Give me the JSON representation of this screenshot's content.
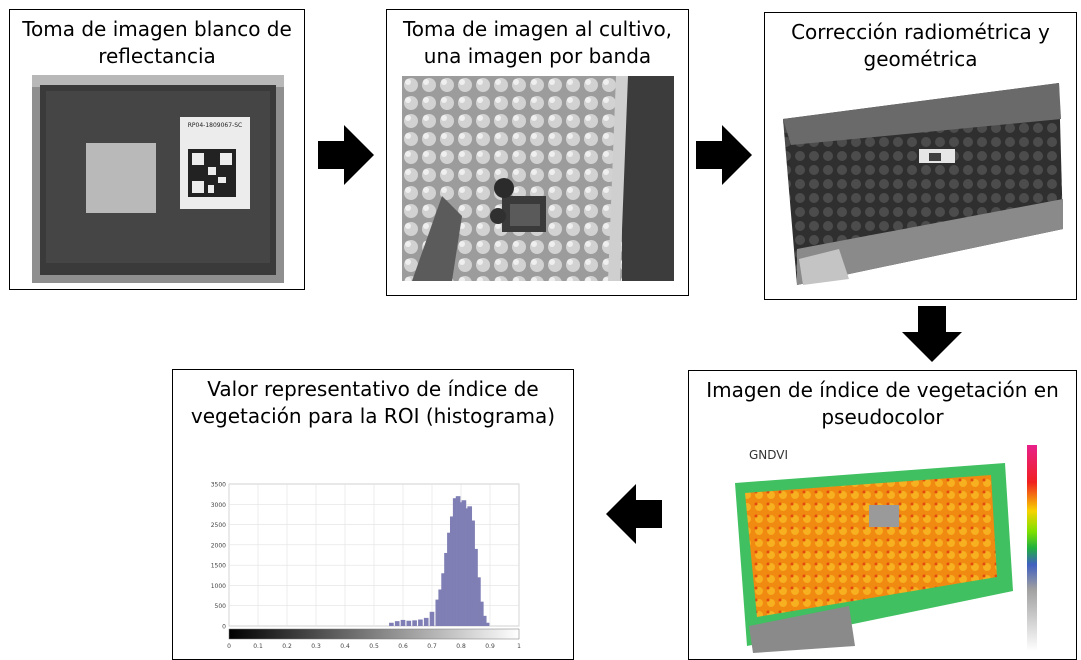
{
  "steps": [
    {
      "title_line1": "Toma de imagen blanco de",
      "title_line2": "reflectancia"
    },
    {
      "title_line1": "Toma de imagen al cultivo,",
      "title_line2": "una imagen por banda"
    },
    {
      "title_line1": "Corrección radiométrica y",
      "title_line2": "geométrica"
    },
    {
      "title_line1": "Imagen de índice de vegetación en",
      "title_line2": "pseudocolor"
    },
    {
      "title_line1": "Valor representativo de índice de",
      "title_line2": "vegetación para la ROI (histograma)"
    }
  ],
  "panel_label_text": "RP04-1809067-SC",
  "index_label": "GNDVI",
  "colors": {
    "arrow": "#000000",
    "border": "#000000",
    "histogram_bar": "#7f7fb5"
  },
  "chart_data": {
    "type": "bar",
    "title": "",
    "xlabel": "",
    "ylabel": "",
    "x_ticks": [
      "0",
      "0.1",
      "0.2",
      "0.3",
      "0.4",
      "0.5",
      "0.6",
      "0.7",
      "0.8",
      "0.9",
      "1"
    ],
    "y_ticks": [
      "0",
      "500",
      "1000",
      "1500",
      "2000",
      "2500",
      "3000",
      "3500"
    ],
    "xlim": [
      0,
      1
    ],
    "ylim": [
      0,
      3500
    ],
    "grid": true,
    "x": [
      0.56,
      0.58,
      0.6,
      0.62,
      0.64,
      0.66,
      0.68,
      0.7,
      0.72,
      0.73,
      0.74,
      0.75,
      0.76,
      0.77,
      0.78,
      0.79,
      0.8,
      0.81,
      0.82,
      0.83,
      0.84,
      0.85,
      0.86,
      0.87,
      0.88,
      0.89
    ],
    "values": [
      80,
      120,
      150,
      130,
      140,
      160,
      200,
      350,
      650,
      900,
      1300,
      1800,
      2300,
      2700,
      3150,
      3200,
      3050,
      3100,
      2900,
      2950,
      2600,
      1900,
      1200,
      600,
      250,
      80
    ]
  }
}
